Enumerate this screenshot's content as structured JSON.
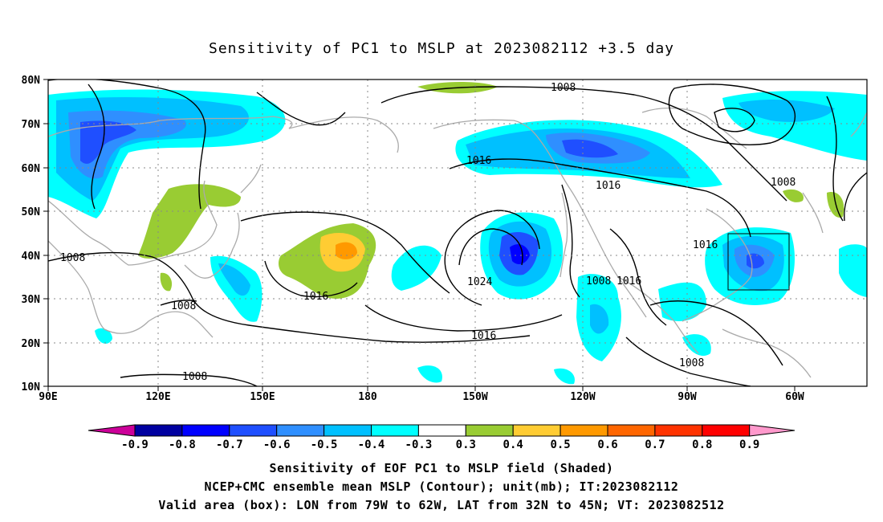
{
  "title": "Sensitivity of PC1 to MSLP at 2023082112 +3.5 day",
  "map": {
    "lon_labels": [
      "90E",
      "120E",
      "150E",
      "180",
      "150W",
      "120W",
      "90W",
      "60W"
    ],
    "lat_labels": [
      "80N",
      "70N",
      "60N",
      "50N",
      "40N",
      "30N",
      "20N",
      "10N"
    ],
    "contour_labels": [
      "1008",
      "1008",
      "1008",
      "1008",
      "1008",
      "1008",
      "1016",
      "1016",
      "1016",
      "1016",
      "1016",
      "1024",
      "1016",
      "1008"
    ],
    "valid_box": {
      "lon_w": -79,
      "lon_e": -62,
      "lat_s": 32,
      "lat_n": 45
    }
  },
  "colorbar": {
    "labels": [
      "-0.9",
      "-0.8",
      "-0.7",
      "-0.6",
      "-0.5",
      "-0.4",
      "-0.3",
      "0.3",
      "0.4",
      "0.5",
      "0.6",
      "0.7",
      "0.8",
      "0.9"
    ],
    "colors": [
      "#0000a0",
      "#0000ff",
      "#1f4fff",
      "#2f8fff",
      "#00c0ff",
      "#00ffff",
      "#ffffff",
      "#99cc33",
      "#ffcc33",
      "#ff9900",
      "#ff6600",
      "#ff3300",
      "#ff0000"
    ],
    "under_color": "#cc0099",
    "over_color": "#ff99cc"
  },
  "captions": {
    "line1": "Sensitivity of EOF PC1 to MSLP field (Shaded)",
    "line2": "NCEP+CMC ensemble mean MSLP (Contour); unit(mb); IT:2023082112",
    "line3": "Valid area (box): LON from 79W to 62W, LAT from 32N to 45N; VT: 2023082512"
  }
}
